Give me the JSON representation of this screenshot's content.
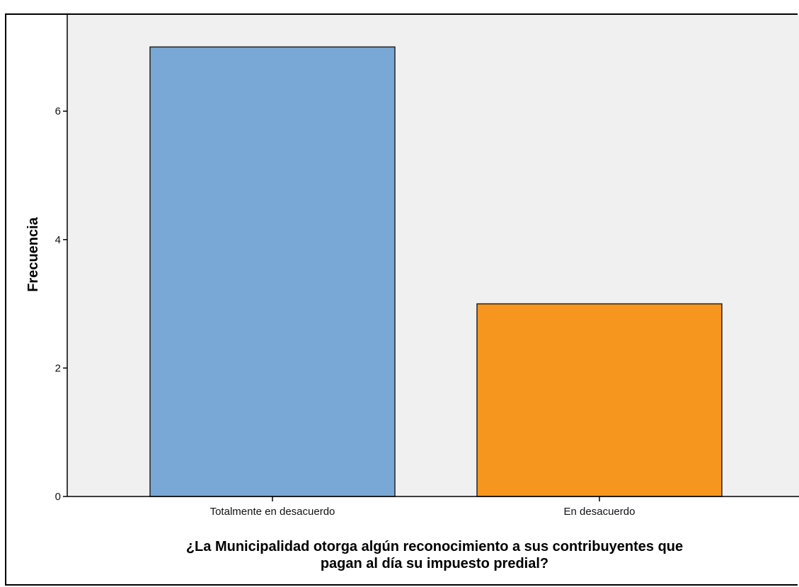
{
  "chart_data": {
    "type": "bar",
    "categories": [
      "Totalmente en desacuerdo",
      "En desacuerdo"
    ],
    "values": [
      7,
      3
    ],
    "colors": [
      "#7aa8d6",
      "#f7961e"
    ],
    "title": "",
    "xlabel": "¿La Municipalidad otorga algún reconocimiento a sus contribuyentes que pagan al día su impuesto predial?",
    "xlabel_lines": [
      "¿La Municipalidad otorga algún reconocimiento a sus contribuyentes que",
      "pagan al día su impuesto predial?"
    ],
    "ylabel": "Frecuencia",
    "ylim": [
      0,
      7.5
    ],
    "yticks": [
      0,
      2,
      4,
      6
    ],
    "grid": false,
    "plot_background": "#f0f0f0"
  }
}
